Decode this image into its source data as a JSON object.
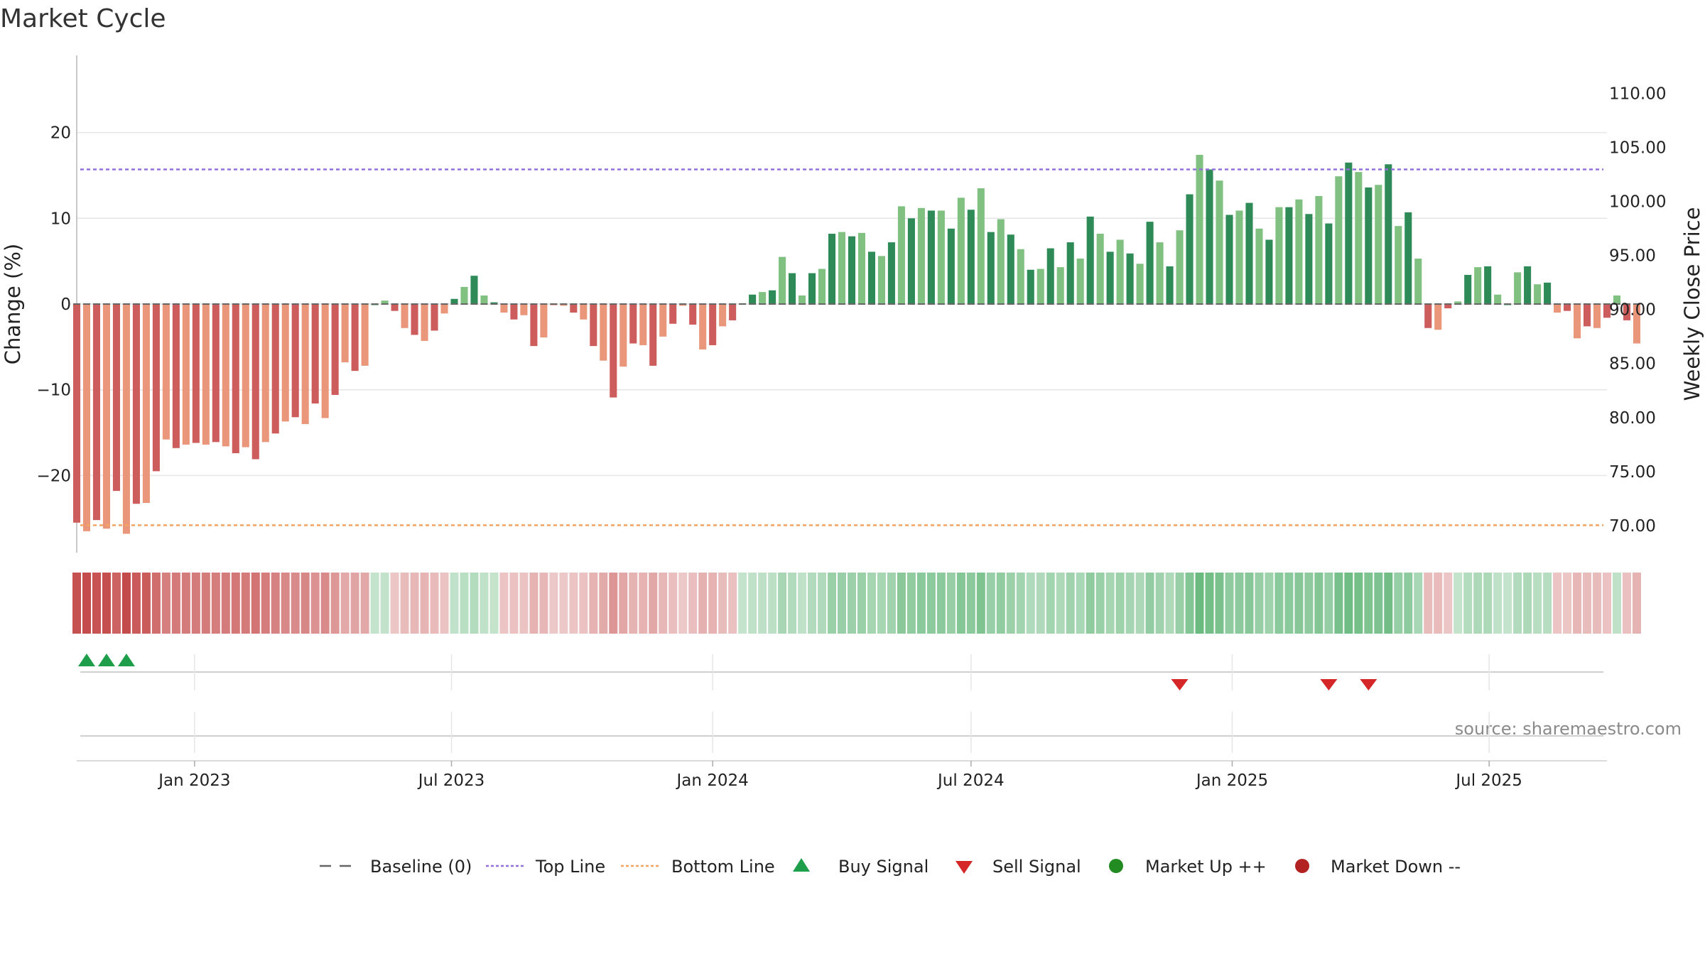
{
  "chart_data": {
    "type": "bar",
    "title": "Market Cycle",
    "ylabel": "Change (%)",
    "ylabel_right": "Weekly Close Price",
    "ylim": [
      -29,
      29
    ],
    "yticks": [
      -20,
      -10,
      0,
      10,
      20
    ],
    "ytick_labels": [
      "−20",
      "−10",
      "0",
      "10",
      "20"
    ],
    "right_ylim": [
      67.5,
      113.5
    ],
    "right_ticks": [
      "70.00",
      "75.00",
      "80.00",
      "85.00",
      "90.00",
      "95.00",
      "100.00",
      "105.00",
      "110.00"
    ],
    "x_start": "2022-10-10",
    "x_end": "2025-09-22",
    "x_ticks": [
      {
        "date": "2023-01-01",
        "label": "Jan 2023"
      },
      {
        "date": "2023-07-01",
        "label": "Jul 2023"
      },
      {
        "date": "2024-01-01",
        "label": "Jan 2024"
      },
      {
        "date": "2024-07-01",
        "label": "Jul 2024"
      },
      {
        "date": "2025-01-01",
        "label": "Jan 2025"
      },
      {
        "date": "2025-07-01",
        "label": "Jul 2025"
      }
    ],
    "week_start": "2022-10-10",
    "top_line": 15.7,
    "bottom_line": -25.8,
    "values": [
      -25.5,
      -26.5,
      -25.2,
      -26.2,
      -21.8,
      -26.8,
      -23.3,
      -23.2,
      -19.5,
      -15.8,
      -16.8,
      -16.4,
      -16.2,
      -16.4,
      -16.1,
      -16.6,
      -17.4,
      -16.7,
      -18.1,
      -16.1,
      -15.1,
      -13.7,
      -13.2,
      -14.0,
      -11.6,
      -13.3,
      -10.6,
      -6.8,
      -7.8,
      -7.2,
      0.0,
      0.4,
      -0.8,
      -2.8,
      -3.6,
      -4.3,
      -3.1,
      -1.1,
      0.6,
      2.0,
      3.3,
      1.0,
      0.2,
      -1.0,
      -1.8,
      -1.3,
      -4.9,
      -3.9,
      -0.1,
      -0.2,
      -1.0,
      -1.8,
      -4.9,
      -6.6,
      -10.9,
      -7.3,
      -4.6,
      -4.8,
      -7.2,
      -3.8,
      -2.3,
      -0.2,
      -2.4,
      -5.3,
      -4.8,
      -2.6,
      -1.9,
      0.1,
      1.1,
      1.4,
      1.6,
      5.5,
      3.6,
      1.0,
      3.6,
      4.1,
      8.2,
      8.4,
      7.9,
      8.3,
      6.1,
      5.6,
      7.2,
      11.4,
      10.0,
      11.2,
      10.9,
      10.9,
      8.8,
      12.4,
      11.0,
      13.5,
      8.4,
      9.9,
      8.1,
      6.4,
      4.0,
      4.1,
      6.5,
      4.3,
      7.2,
      5.3,
      10.2,
      8.2,
      6.1,
      7.5,
      5.9,
      4.7,
      9.6,
      7.2,
      4.4,
      8.6,
      12.8,
      17.4,
      15.7,
      14.4,
      10.4,
      10.9,
      11.8,
      8.8,
      7.5,
      11.3,
      11.3,
      12.2,
      10.5,
      12.6,
      9.4,
      14.9,
      16.5,
      15.4,
      13.6,
      13.9,
      16.3,
      9.1,
      10.7,
      5.3,
      -2.8,
      -3.0,
      -0.5,
      0.3,
      3.4,
      4.3,
      4.4,
      1.1,
      0.0,
      3.7,
      4.4,
      2.3,
      2.5,
      -1.0,
      -0.8,
      -4.0,
      -2.6,
      -2.8,
      -1.6,
      1.0,
      -1.9,
      -4.6
    ],
    "buy_signals": [
      "2022-10-17",
      "2022-10-31",
      "2022-11-14"
    ],
    "sell_signals": [
      "2024-11-25",
      "2025-03-10",
      "2025-04-07"
    ],
    "legend": [
      "Baseline (0)",
      "Top Line",
      "Bottom Line",
      "Buy Signal",
      "Sell Signal",
      "Market Up ++",
      "Market Down --"
    ],
    "grid": true,
    "legend_position": "bottom"
  },
  "source_text": "source: sharemaestro.com",
  "colors": {
    "up_strong": "#2e8b57",
    "up_light": "#80c080",
    "down_strong": "#cd5c5c",
    "down_light": "#e9967a",
    "top_line": "#9370db",
    "bottom_line": "#f4a460",
    "buy": "#1e9e4a",
    "sell": "#d62728",
    "market_up": "#228b22",
    "market_down": "#b22222",
    "grid": "#e6e6e6"
  }
}
